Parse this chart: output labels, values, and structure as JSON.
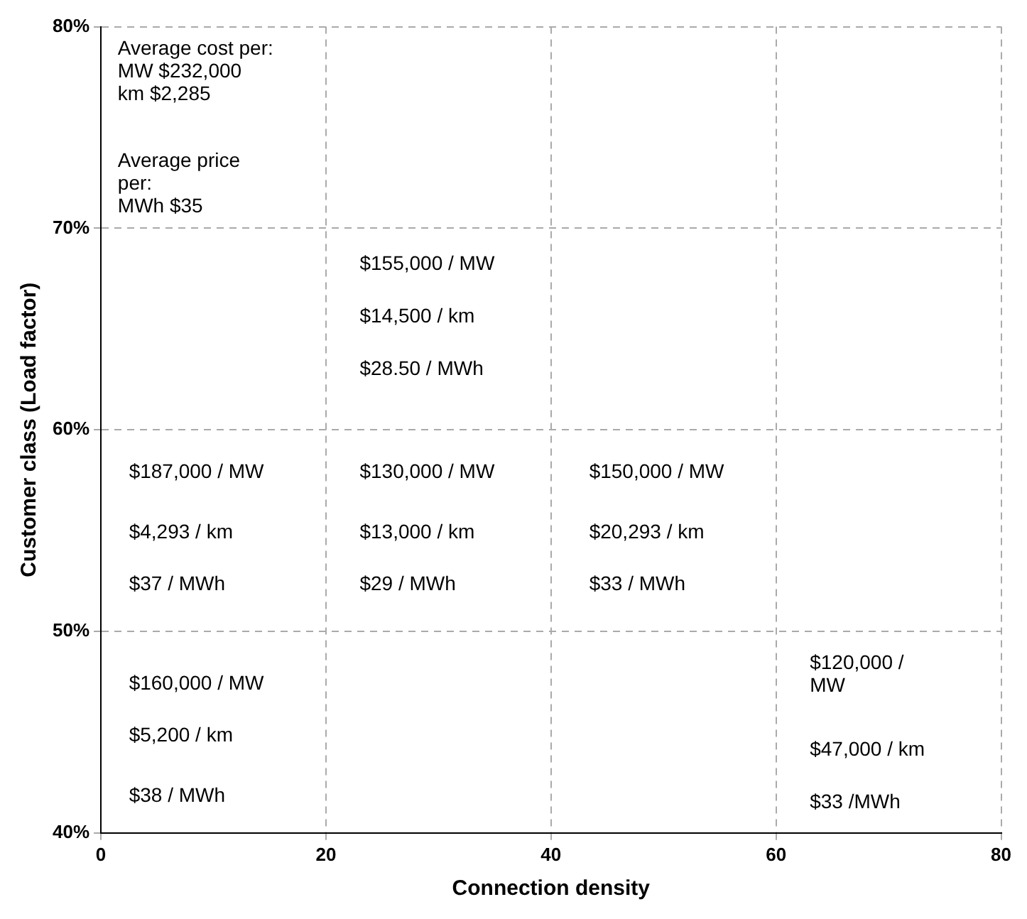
{
  "chart_data": {
    "type": "scatter",
    "xlabel": "Connection density",
    "ylabel": "Customer class (Load factor)",
    "xlim": [
      0,
      80
    ],
    "ylim": [
      40,
      80
    ],
    "xticks": [
      0,
      20,
      40,
      60,
      80
    ],
    "yticks": [
      {
        "value": 40,
        "label": "40%"
      },
      {
        "value": 50,
        "label": "50%"
      },
      {
        "value": 60,
        "label": "60%"
      },
      {
        "value": 70,
        "label": "70%"
      },
      {
        "value": 80,
        "label": "80%"
      }
    ],
    "grid": true,
    "annotations": [
      "Average cost per:\nMW $232,000\nkm $2,285",
      "Average price\nper:\nMWh $35",
      "$155,000 / MW",
      "$14,500 / km",
      "$28.50 / MWh",
      "$187,000 / MW",
      "$4,293 / km",
      "$37 / MWh",
      "$130,000 / MW",
      "$13,000 / km",
      "$29 / MWh",
      "$150,000 / MW",
      "$20,293 / km",
      "$33 / MWh",
      "$160,000 / MW",
      "$5,200 / km",
      "$38 / MWh",
      "$120,000 /\nMW",
      "$47,000 / km",
      "$33 /MWh"
    ]
  }
}
